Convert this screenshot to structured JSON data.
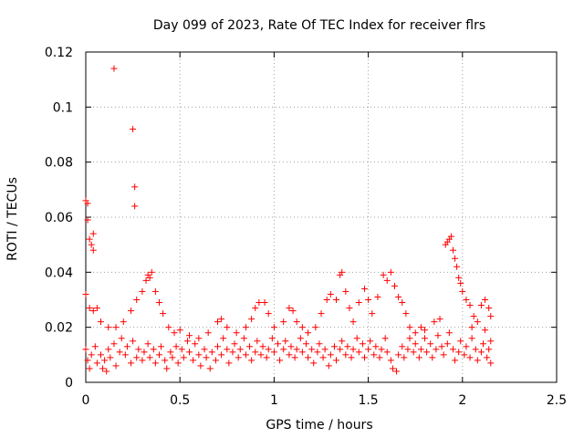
{
  "chart_data": {
    "type": "scatter",
    "title": "Day 099 of 2023, Rate Of TEC Index for receiver flrs",
    "xlabel": "GPS time / hours",
    "ylabel": "ROTI / TECUs",
    "xlim": [
      0,
      2.5
    ],
    "ylim": [
      0,
      0.12
    ],
    "xticks": [
      0,
      0.5,
      1,
      1.5,
      2,
      2.5
    ],
    "xtick_labels": [
      "0",
      "0.5",
      "1",
      "1.5",
      "2",
      "2.5"
    ],
    "yticks": [
      0,
      0.02,
      0.04,
      0.06,
      0.08,
      0.1,
      0.12
    ],
    "ytick_labels": [
      "0",
      "0.02",
      "0.04",
      "0.06",
      "0.08",
      "0.1",
      "0.12"
    ],
    "grid": true,
    "marker": "+",
    "color": "#ff0000",
    "points": [
      [
        0.0,
        0.066
      ],
      [
        0.01,
        0.065
      ],
      [
        0.01,
        0.059
      ],
      [
        0.02,
        0.052
      ],
      [
        0.03,
        0.05
      ],
      [
        0.04,
        0.054
      ],
      [
        0.04,
        0.048
      ],
      [
        0.15,
        0.114
      ],
      [
        0.25,
        0.092
      ],
      [
        0.26,
        0.071
      ],
      [
        0.26,
        0.064
      ],
      [
        0.0,
        0.032
      ],
      [
        0.02,
        0.027
      ],
      [
        0.04,
        0.026
      ],
      [
        0.06,
        0.027
      ],
      [
        0.08,
        0.022
      ],
      [
        0.12,
        0.02
      ],
      [
        0.16,
        0.02
      ],
      [
        0.2,
        0.022
      ],
      [
        0.24,
        0.026
      ],
      [
        0.27,
        0.03
      ],
      [
        0.3,
        0.033
      ],
      [
        0.32,
        0.037
      ],
      [
        0.33,
        0.039
      ],
      [
        0.34,
        0.038
      ],
      [
        0.35,
        0.04
      ],
      [
        0.37,
        0.033
      ],
      [
        0.39,
        0.029
      ],
      [
        0.41,
        0.025
      ],
      [
        0.44,
        0.02
      ],
      [
        0.47,
        0.018
      ],
      [
        0.0,
        0.012
      ],
      [
        0.01,
        0.008
      ],
      [
        0.02,
        0.005
      ],
      [
        0.03,
        0.01
      ],
      [
        0.05,
        0.013
      ],
      [
        0.06,
        0.007
      ],
      [
        0.08,
        0.01
      ],
      [
        0.09,
        0.005
      ],
      [
        0.1,
        0.008
      ],
      [
        0.11,
        0.004
      ],
      [
        0.12,
        0.012
      ],
      [
        0.13,
        0.009
      ],
      [
        0.15,
        0.014
      ],
      [
        0.16,
        0.006
      ],
      [
        0.18,
        0.011
      ],
      [
        0.19,
        0.016
      ],
      [
        0.21,
        0.01
      ],
      [
        0.22,
        0.013
      ],
      [
        0.24,
        0.007
      ],
      [
        0.25,
        0.015
      ],
      [
        0.27,
        0.009
      ],
      [
        0.28,
        0.012
      ],
      [
        0.3,
        0.008
      ],
      [
        0.31,
        0.011
      ],
      [
        0.33,
        0.014
      ],
      [
        0.34,
        0.009
      ],
      [
        0.36,
        0.012
      ],
      [
        0.37,
        0.007
      ],
      [
        0.39,
        0.01
      ],
      [
        0.4,
        0.013
      ],
      [
        0.42,
        0.008
      ],
      [
        0.43,
        0.005
      ],
      [
        0.45,
        0.011
      ],
      [
        0.46,
        0.009
      ],
      [
        0.48,
        0.013
      ],
      [
        0.49,
        0.007
      ],
      [
        0.51,
        0.012
      ],
      [
        0.52,
        0.009
      ],
      [
        0.54,
        0.015
      ],
      [
        0.55,
        0.011
      ],
      [
        0.57,
        0.008
      ],
      [
        0.58,
        0.014
      ],
      [
        0.6,
        0.01
      ],
      [
        0.61,
        0.006
      ],
      [
        0.63,
        0.012
      ],
      [
        0.64,
        0.009
      ],
      [
        0.66,
        0.005
      ],
      [
        0.67,
        0.011
      ],
      [
        0.69,
        0.008
      ],
      [
        0.7,
        0.013
      ],
      [
        0.72,
        0.01
      ],
      [
        0.73,
        0.016
      ],
      [
        0.75,
        0.012
      ],
      [
        0.76,
        0.007
      ],
      [
        0.78,
        0.011
      ],
      [
        0.79,
        0.014
      ],
      [
        0.81,
        0.009
      ],
      [
        0.82,
        0.012
      ],
      [
        0.84,
        0.016
      ],
      [
        0.85,
        0.01
      ],
      [
        0.87,
        0.013
      ],
      [
        0.88,
        0.008
      ],
      [
        0.9,
        0.011
      ],
      [
        0.91,
        0.015
      ],
      [
        0.93,
        0.01
      ],
      [
        0.94,
        0.013
      ],
      [
        0.96,
        0.009
      ],
      [
        0.97,
        0.012
      ],
      [
        0.99,
        0.016
      ],
      [
        1.0,
        0.011
      ],
      [
        1.02,
        0.014
      ],
      [
        1.03,
        0.008
      ],
      [
        1.05,
        0.012
      ],
      [
        1.06,
        0.015
      ],
      [
        1.08,
        0.01
      ],
      [
        1.09,
        0.013
      ],
      [
        1.11,
        0.009
      ],
      [
        1.12,
        0.012
      ],
      [
        1.14,
        0.016
      ],
      [
        1.15,
        0.011
      ],
      [
        1.17,
        0.014
      ],
      [
        1.18,
        0.009
      ],
      [
        1.2,
        0.012
      ],
      [
        1.21,
        0.007
      ],
      [
        1.23,
        0.011
      ],
      [
        1.24,
        0.014
      ],
      [
        1.26,
        0.009
      ],
      [
        1.27,
        0.012
      ],
      [
        1.29,
        0.006
      ],
      [
        1.3,
        0.01
      ],
      [
        1.32,
        0.013
      ],
      [
        1.33,
        0.008
      ],
      [
        1.35,
        0.012
      ],
      [
        1.36,
        0.015
      ],
      [
        1.38,
        0.01
      ],
      [
        1.39,
        0.013
      ],
      [
        1.41,
        0.009
      ],
      [
        1.42,
        0.012
      ],
      [
        1.44,
        0.016
      ],
      [
        1.45,
        0.011
      ],
      [
        1.47,
        0.014
      ],
      [
        1.48,
        0.009
      ],
      [
        1.5,
        0.012
      ],
      [
        1.51,
        0.015
      ],
      [
        1.53,
        0.01
      ],
      [
        1.54,
        0.013
      ],
      [
        1.56,
        0.009
      ],
      [
        1.57,
        0.012
      ],
      [
        1.59,
        0.016
      ],
      [
        1.6,
        0.011
      ],
      [
        1.62,
        0.008
      ],
      [
        1.63,
        0.005
      ],
      [
        1.65,
        0.004
      ],
      [
        1.66,
        0.01
      ],
      [
        1.68,
        0.013
      ],
      [
        1.69,
        0.009
      ],
      [
        1.71,
        0.012
      ],
      [
        1.72,
        0.016
      ],
      [
        1.74,
        0.011
      ],
      [
        1.75,
        0.014
      ],
      [
        1.77,
        0.009
      ],
      [
        1.78,
        0.012
      ],
      [
        1.8,
        0.016
      ],
      [
        1.81,
        0.011
      ],
      [
        1.83,
        0.014
      ],
      [
        1.84,
        0.009
      ],
      [
        1.86,
        0.012
      ],
      [
        1.87,
        0.017
      ],
      [
        1.89,
        0.013
      ],
      [
        1.9,
        0.01
      ],
      [
        1.92,
        0.014
      ],
      [
        1.93,
        0.018
      ],
      [
        1.95,
        0.012
      ],
      [
        1.96,
        0.008
      ],
      [
        1.98,
        0.011
      ],
      [
        1.99,
        0.015
      ],
      [
        2.01,
        0.01
      ],
      [
        2.02,
        0.013
      ],
      [
        2.04,
        0.009
      ],
      [
        2.05,
        0.016
      ],
      [
        2.07,
        0.012
      ],
      [
        2.08,
        0.008
      ],
      [
        2.1,
        0.011
      ],
      [
        2.11,
        0.014
      ],
      [
        2.13,
        0.009
      ],
      [
        2.14,
        0.012
      ],
      [
        2.15,
        0.007
      ],
      [
        2.15,
        0.015
      ],
      [
        0.5,
        0.019
      ],
      [
        0.55,
        0.017
      ],
      [
        0.6,
        0.016
      ],
      [
        0.65,
        0.018
      ],
      [
        0.7,
        0.022
      ],
      [
        0.72,
        0.023
      ],
      [
        0.75,
        0.02
      ],
      [
        0.8,
        0.018
      ],
      [
        0.85,
        0.02
      ],
      [
        0.88,
        0.023
      ],
      [
        0.9,
        0.027
      ],
      [
        0.92,
        0.029
      ],
      [
        0.95,
        0.029
      ],
      [
        0.97,
        0.025
      ],
      [
        1.0,
        0.02
      ],
      [
        1.05,
        0.022
      ],
      [
        1.08,
        0.027
      ],
      [
        1.1,
        0.026
      ],
      [
        1.12,
        0.022
      ],
      [
        1.15,
        0.02
      ],
      [
        1.18,
        0.018
      ],
      [
        1.22,
        0.02
      ],
      [
        1.25,
        0.025
      ],
      [
        1.28,
        0.03
      ],
      [
        1.3,
        0.032
      ],
      [
        1.33,
        0.03
      ],
      [
        1.35,
        0.039
      ],
      [
        1.36,
        0.04
      ],
      [
        1.38,
        0.033
      ],
      [
        1.4,
        0.027
      ],
      [
        1.42,
        0.022
      ],
      [
        1.45,
        0.029
      ],
      [
        1.48,
        0.034
      ],
      [
        1.5,
        0.03
      ],
      [
        1.52,
        0.025
      ],
      [
        1.55,
        0.031
      ],
      [
        1.58,
        0.039
      ],
      [
        1.6,
        0.037
      ],
      [
        1.62,
        0.04
      ],
      [
        1.64,
        0.035
      ],
      [
        1.66,
        0.031
      ],
      [
        1.68,
        0.029
      ],
      [
        1.7,
        0.025
      ],
      [
        1.72,
        0.02
      ],
      [
        1.75,
        0.018
      ],
      [
        1.78,
        0.02
      ],
      [
        1.8,
        0.019
      ],
      [
        1.85,
        0.022
      ],
      [
        1.88,
        0.023
      ],
      [
        1.91,
        0.05
      ],
      [
        1.92,
        0.051
      ],
      [
        1.93,
        0.052
      ],
      [
        1.94,
        0.053
      ],
      [
        1.95,
        0.048
      ],
      [
        1.96,
        0.045
      ],
      [
        1.97,
        0.042
      ],
      [
        1.98,
        0.038
      ],
      [
        1.99,
        0.036
      ],
      [
        2.0,
        0.033
      ],
      [
        2.02,
        0.03
      ],
      [
        2.04,
        0.028
      ],
      [
        2.06,
        0.024
      ],
      [
        2.08,
        0.022
      ],
      [
        2.1,
        0.028
      ],
      [
        2.12,
        0.03
      ],
      [
        2.14,
        0.027
      ],
      [
        2.15,
        0.024
      ],
      [
        2.12,
        0.019
      ],
      [
        2.05,
        0.02
      ]
    ]
  }
}
